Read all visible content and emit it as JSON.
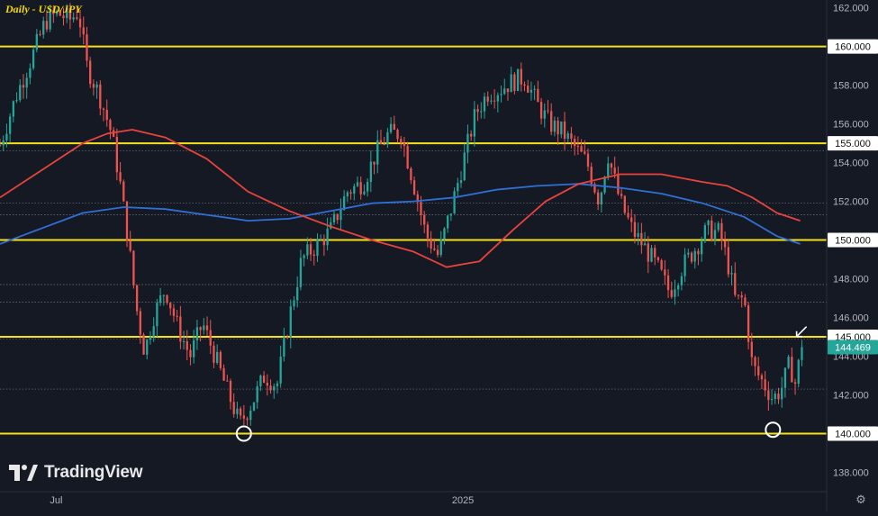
{
  "title": "Daily - USD/JPY",
  "brand": "TradingView",
  "colors": {
    "background": "#151924",
    "up": "#26a69a",
    "down": "#ef5350",
    "level": "#f5e11b",
    "ma_slow": "#2f6fd6",
    "ma_fast": "#e8433c",
    "price_tag": "#26a69a"
  },
  "chart_data": {
    "type": "candlestick",
    "ylim": [
      137,
      162.4
    ],
    "y_ticks": [
      "138.000",
      "140.000",
      "142.000",
      "144.000",
      "146.000",
      "148.000",
      "150.000",
      "152.000",
      "154.000",
      "156.000",
      "158.000",
      "160.000",
      "162.000"
    ],
    "x_labels": [
      {
        "label": "Jul",
        "t": 0.068
      },
      {
        "label": "2025",
        "t": 0.56
      }
    ],
    "last_price": "144.469",
    "last_price_value": 144.469,
    "key_levels": [
      {
        "value": 160,
        "label": "160.000"
      },
      {
        "value": 155,
        "label": "155.000"
      },
      {
        "value": 150,
        "label": "150.000"
      },
      {
        "value": 145,
        "label": "145.000"
      },
      {
        "value": 140,
        "label": "140.000"
      }
    ],
    "dotted_levels": [
      154.6,
      151.9,
      151.3,
      147.7,
      146.8,
      144.9,
      142.3
    ],
    "circled_lows": [
      {
        "t": 0.295,
        "value": 140
      },
      {
        "t": 0.935,
        "value": 140.2
      }
    ],
    "arrow_marker": {
      "t": 0.968,
      "value": 145.2
    },
    "price_path": [
      [
        0.0,
        154.9
      ],
      [
        0.02,
        157.5
      ],
      [
        0.04,
        159.6
      ],
      [
        0.055,
        161.3
      ],
      [
        0.07,
        161.7
      ],
      [
        0.085,
        161.4
      ],
      [
        0.095,
        161.8
      ],
      [
        0.105,
        159.0
      ],
      [
        0.12,
        157.5
      ],
      [
        0.135,
        155.5
      ],
      [
        0.145,
        153.0
      ],
      [
        0.155,
        150.0
      ],
      [
        0.165,
        146.5
      ],
      [
        0.175,
        144.2
      ],
      [
        0.185,
        146.0
      ],
      [
        0.2,
        147.5
      ],
      [
        0.215,
        145.5
      ],
      [
        0.23,
        144.0
      ],
      [
        0.245,
        145.7
      ],
      [
        0.26,
        144.0
      ],
      [
        0.275,
        142.2
      ],
      [
        0.29,
        140.5
      ],
      [
        0.305,
        141.6
      ],
      [
        0.32,
        143.0
      ],
      [
        0.335,
        142.5
      ],
      [
        0.35,
        146.0
      ],
      [
        0.365,
        149.0
      ],
      [
        0.385,
        149.8
      ],
      [
        0.4,
        150.5
      ],
      [
        0.42,
        152.5
      ],
      [
        0.44,
        153.0
      ],
      [
        0.455,
        154.5
      ],
      [
        0.47,
        155.5
      ],
      [
        0.485,
        155.5
      ],
      [
        0.5,
        153.0
      ],
      [
        0.515,
        150.3
      ],
      [
        0.53,
        149.2
      ],
      [
        0.545,
        151.5
      ],
      [
        0.56,
        154.0
      ],
      [
        0.575,
        156.5
      ],
      [
        0.59,
        157.6
      ],
      [
        0.605,
        157.8
      ],
      [
        0.62,
        158.2
      ],
      [
        0.635,
        158.4
      ],
      [
        0.65,
        157.0
      ],
      [
        0.665,
        156.0
      ],
      [
        0.68,
        155.6
      ],
      [
        0.695,
        154.8
      ],
      [
        0.71,
        154.0
      ],
      [
        0.725,
        152.0
      ],
      [
        0.735,
        154.5
      ],
      [
        0.75,
        152.0
      ],
      [
        0.765,
        150.5
      ],
      [
        0.78,
        149.6
      ],
      [
        0.795,
        148.6
      ],
      [
        0.81,
        147.3
      ],
      [
        0.825,
        148.6
      ],
      [
        0.84,
        149.5
      ],
      [
        0.855,
        150.5
      ],
      [
        0.87,
        150.4
      ],
      [
        0.88,
        148.9
      ],
      [
        0.89,
        146.8
      ],
      [
        0.9,
        147.0
      ],
      [
        0.91,
        143.5
      ],
      [
        0.925,
        142.5
      ],
      [
        0.935,
        141.8
      ],
      [
        0.945,
        142.3
      ],
      [
        0.955,
        143.6
      ],
      [
        0.962,
        142.6
      ],
      [
        0.97,
        144.469
      ]
    ],
    "ma_slow_path": [
      [
        0.0,
        149.8
      ],
      [
        0.05,
        150.6
      ],
      [
        0.1,
        151.4
      ],
      [
        0.15,
        151.7
      ],
      [
        0.2,
        151.6
      ],
      [
        0.25,
        151.3
      ],
      [
        0.3,
        151.0
      ],
      [
        0.35,
        151.1
      ],
      [
        0.4,
        151.5
      ],
      [
        0.45,
        151.9
      ],
      [
        0.5,
        152.0
      ],
      [
        0.55,
        152.2
      ],
      [
        0.6,
        152.6
      ],
      [
        0.65,
        152.8
      ],
      [
        0.7,
        152.9
      ],
      [
        0.75,
        152.7
      ],
      [
        0.8,
        152.4
      ],
      [
        0.85,
        151.9
      ],
      [
        0.9,
        151.2
      ],
      [
        0.94,
        150.2
      ],
      [
        0.968,
        149.8
      ]
    ],
    "ma_fast_path": [
      [
        0.0,
        152.2
      ],
      [
        0.05,
        153.6
      ],
      [
        0.1,
        155.0
      ],
      [
        0.13,
        155.5
      ],
      [
        0.16,
        155.7
      ],
      [
        0.2,
        155.3
      ],
      [
        0.25,
        154.2
      ],
      [
        0.3,
        152.5
      ],
      [
        0.35,
        151.5
      ],
      [
        0.4,
        150.7
      ],
      [
        0.45,
        150.0
      ],
      [
        0.5,
        149.4
      ],
      [
        0.54,
        148.6
      ],
      [
        0.58,
        148.9
      ],
      [
        0.62,
        150.5
      ],
      [
        0.66,
        152.0
      ],
      [
        0.7,
        152.9
      ],
      [
        0.75,
        153.4
      ],
      [
        0.8,
        153.4
      ],
      [
        0.85,
        153.0
      ],
      [
        0.88,
        152.8
      ],
      [
        0.91,
        152.2
      ],
      [
        0.94,
        151.4
      ],
      [
        0.968,
        151.0
      ]
    ]
  }
}
